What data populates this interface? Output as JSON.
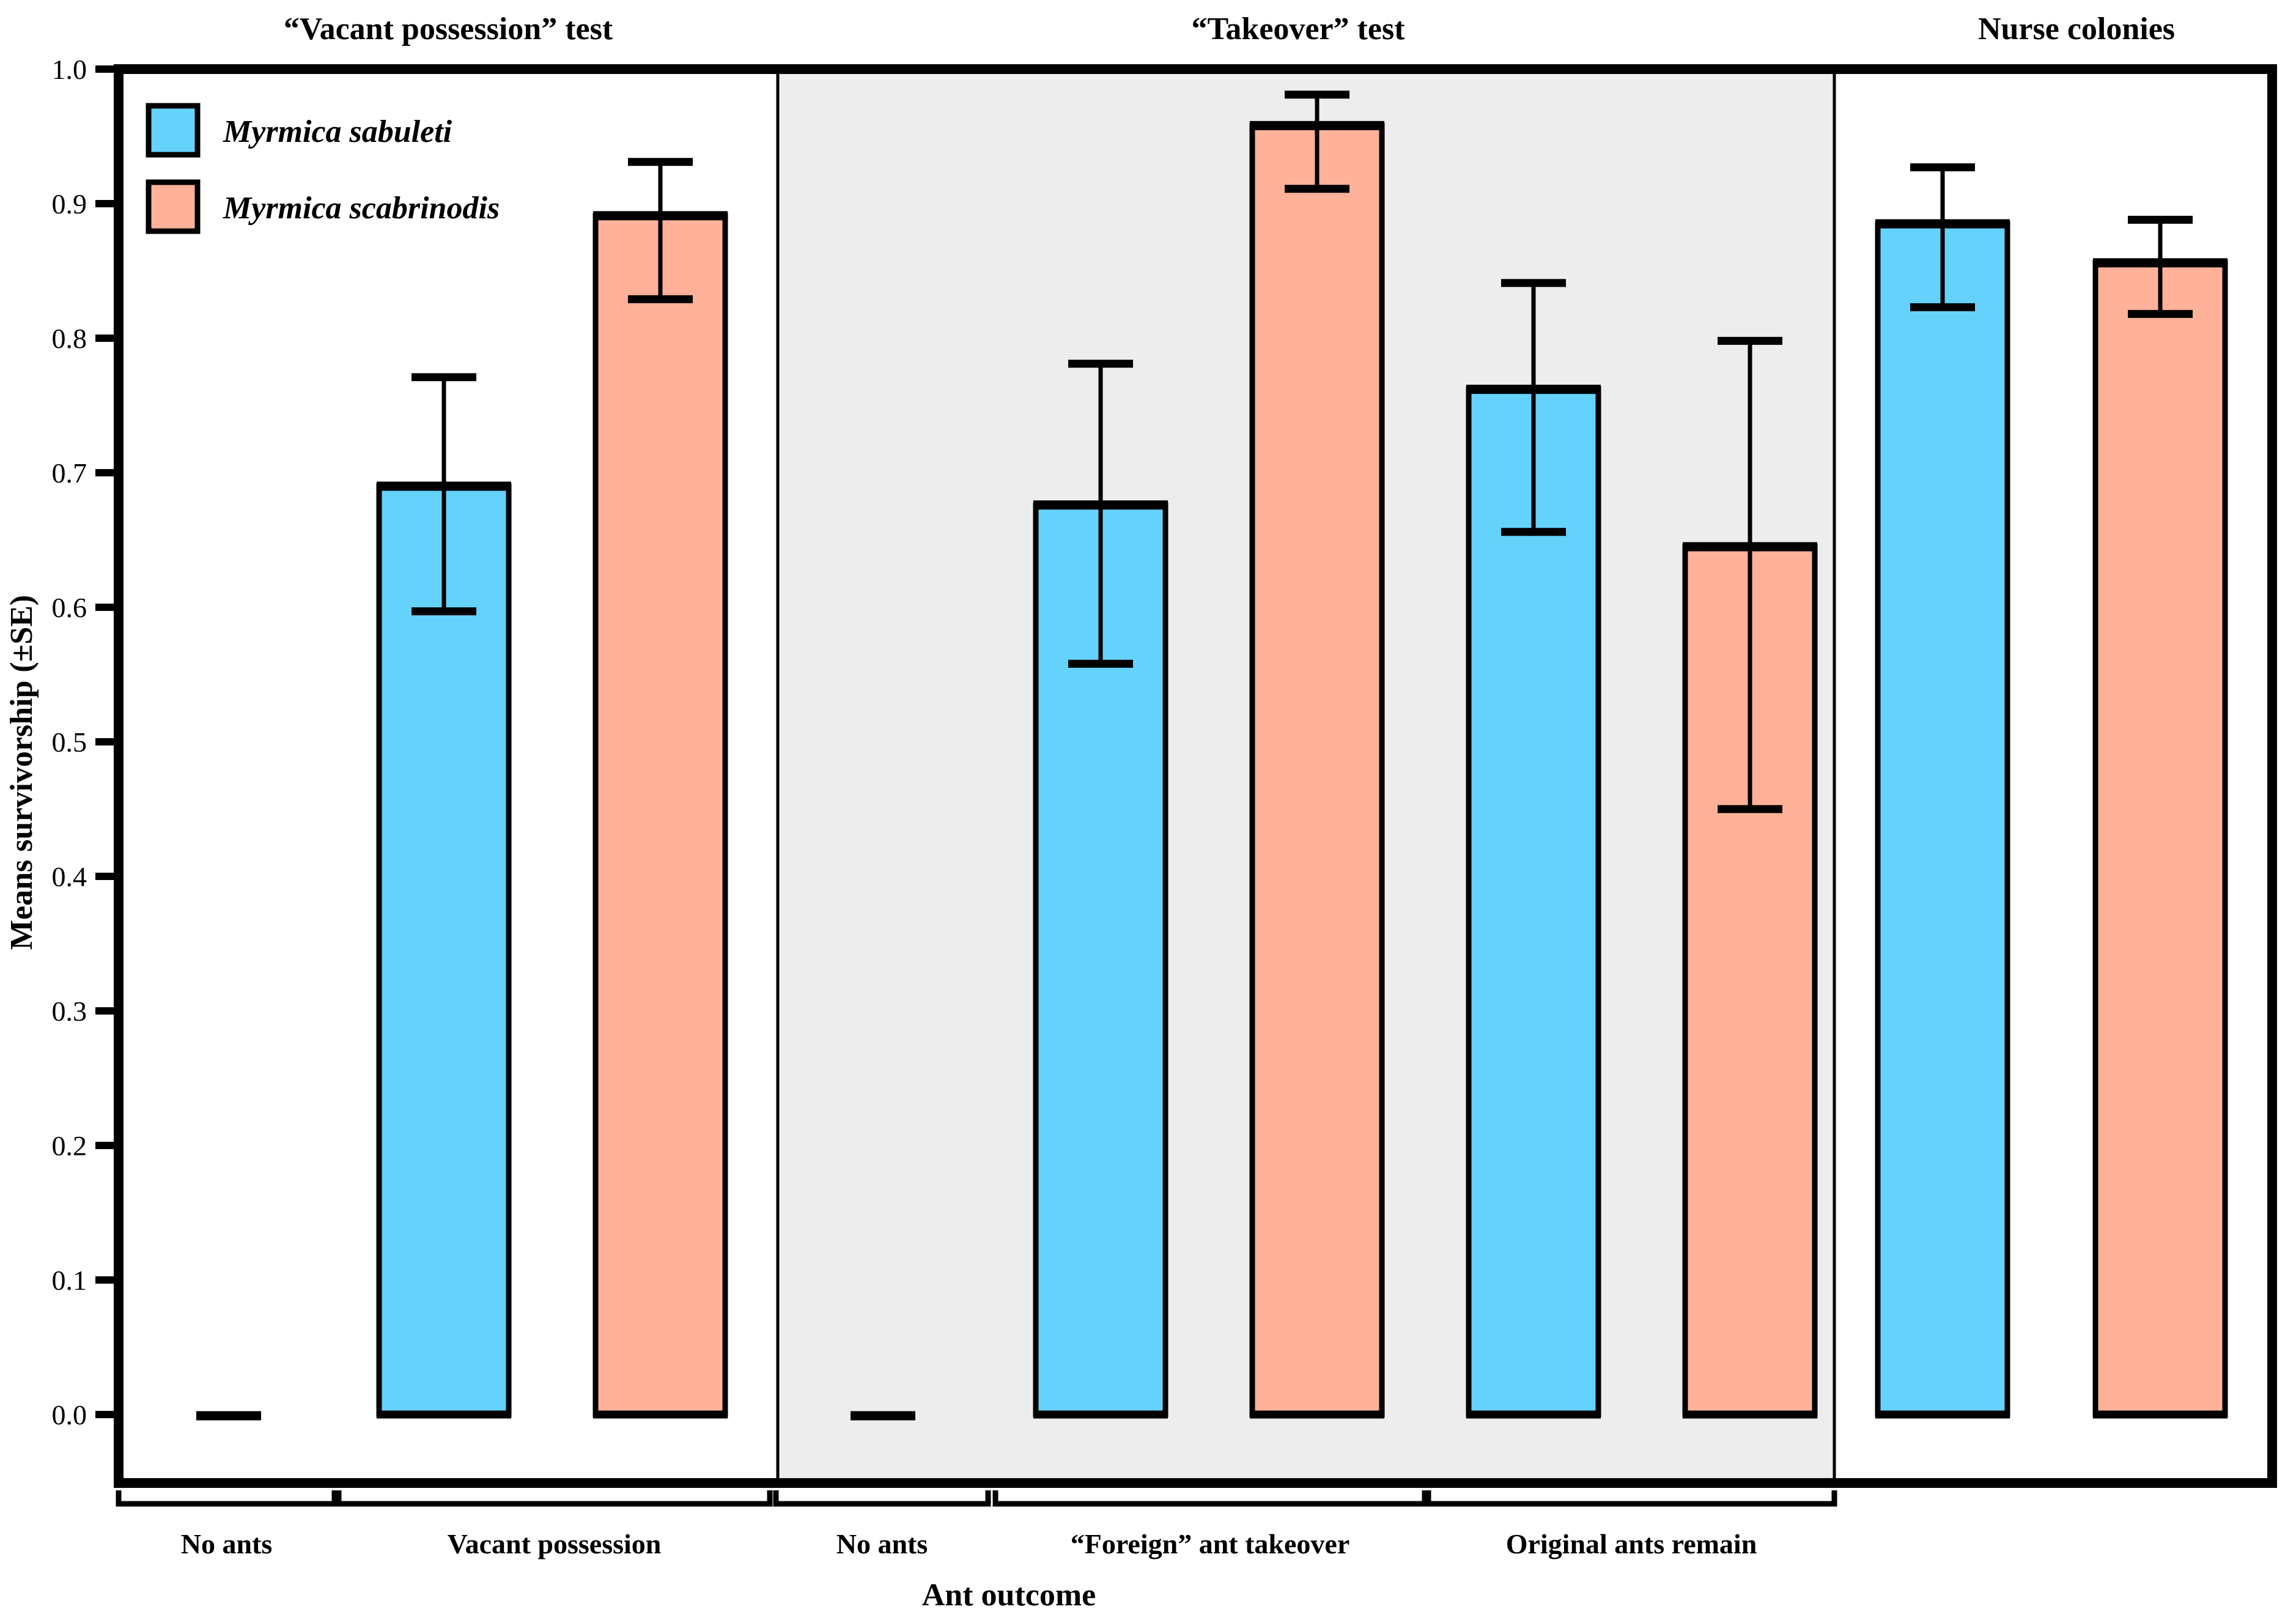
{
  "panel_titles": [
    "“Vacant possession” test",
    "“Takeover” test",
    "Nurse colonies"
  ],
  "y_axis": {
    "label": "Means survivorship (±SE)",
    "ticks": [
      "1.0",
      "0.9",
      "0.8",
      "0.7",
      "0.6",
      "0.5",
      "0.4",
      "0.3",
      "0.2",
      "0.1",
      "0.0"
    ]
  },
  "x_axis": {
    "label": "Ant outcome",
    "group_labels": [
      "No ants",
      "Vacant possession",
      "No ants",
      "“Foreign” ant takeover",
      "Original ants remain"
    ]
  },
  "legend": {
    "items": [
      {
        "label": "Myrmica sabuleti",
        "color": "#64D2FB"
      },
      {
        "label": "Myrmica scabrinodis",
        "color": "#FFB299"
      }
    ]
  },
  "colors": {
    "bar_blue": "#64D2FB",
    "bar_salmon": "#FFB299",
    "takeover_panel_shade": "#EDEDED",
    "axis_black": "#000000",
    "background": "#FFFFFF"
  },
  "chart_data": {
    "type": "bar",
    "title": "",
    "xlabel": "Ant outcome",
    "ylabel": "Means survivorship (±SE)",
    "ylim": [
      0,
      1.0
    ],
    "ytick_step": 0.1,
    "grid": false,
    "legend_position": "top-left-inside",
    "series_names": [
      "Myrmica sabuleti",
      "Myrmica scabrinodis"
    ],
    "panels": [
      {
        "title": "“Vacant possession” test",
        "shaded": false,
        "groups": [
          {
            "label": "No ants",
            "bars": [
              {
                "series": null,
                "value": 0,
                "err_lo": 0,
                "err_hi": 0
              }
            ]
          },
          {
            "label": "Vacant possession",
            "bars": [
              {
                "series": "Myrmica sabuleti",
                "value": 0.69,
                "err_lo": 0.597,
                "err_hi": 0.771
              },
              {
                "series": "Myrmica scabrinodis",
                "value": 0.891,
                "err_lo": 0.829,
                "err_hi": 0.931
              }
            ]
          }
        ]
      },
      {
        "title": "“Takeover” test",
        "shaded": true,
        "groups": [
          {
            "label": "No ants",
            "bars": [
              {
                "series": null,
                "value": 0,
                "err_lo": 0,
                "err_hi": 0
              }
            ]
          },
          {
            "label": "“Foreign” ant takeover",
            "bars": [
              {
                "series": "Myrmica sabuleti",
                "value": 0.676,
                "err_lo": 0.558,
                "err_hi": 0.781
              },
              {
                "series": "Myrmica scabrinodis",
                "value": 0.958,
                "err_lo": 0.911,
                "err_hi": 0.981
              }
            ]
          },
          {
            "label": "Original ants remain",
            "bars": [
              {
                "series": "Myrmica sabuleti",
                "value": 0.762,
                "err_lo": 0.656,
                "err_hi": 0.841
              },
              {
                "series": "Myrmica scabrinodis",
                "value": 0.645,
                "err_lo": 0.45,
                "err_hi": 0.798
              }
            ]
          }
        ]
      },
      {
        "title": "Nurse colonies",
        "shaded": false,
        "groups": [
          {
            "label": "",
            "bars": [
              {
                "series": "Myrmica sabuleti",
                "value": 0.885,
                "err_lo": 0.823,
                "err_hi": 0.927
              },
              {
                "series": "Myrmica scabrinodis",
                "value": 0.856,
                "err_lo": 0.818,
                "err_hi": 0.888
              }
            ]
          }
        ]
      }
    ]
  }
}
